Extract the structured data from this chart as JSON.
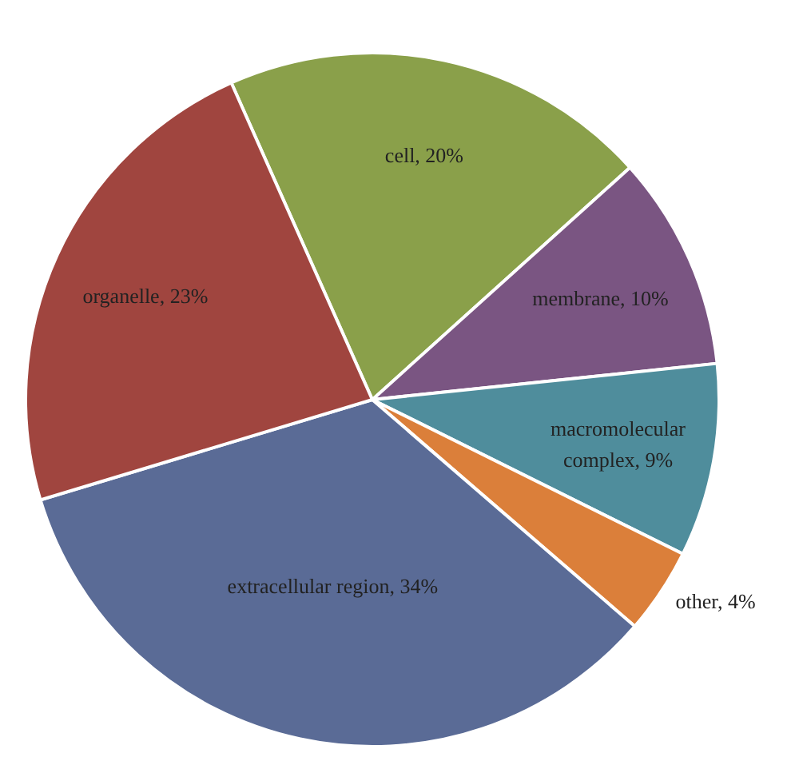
{
  "chart_data": {
    "type": "pie",
    "categories": [
      "cell",
      "membrane",
      "macromolecular complex",
      "other",
      "extracellular region",
      "organelle"
    ],
    "values": [
      20,
      10,
      9,
      4,
      34,
      23
    ],
    "colors": [
      "#8aa04a",
      "#7a5582",
      "#4f8d9c",
      "#db7f3a",
      "#5a6b96",
      "#a0453f"
    ],
    "value_labels": [
      "20%",
      "10%",
      "9%",
      "4%",
      "34%",
      "23%"
    ]
  }
}
